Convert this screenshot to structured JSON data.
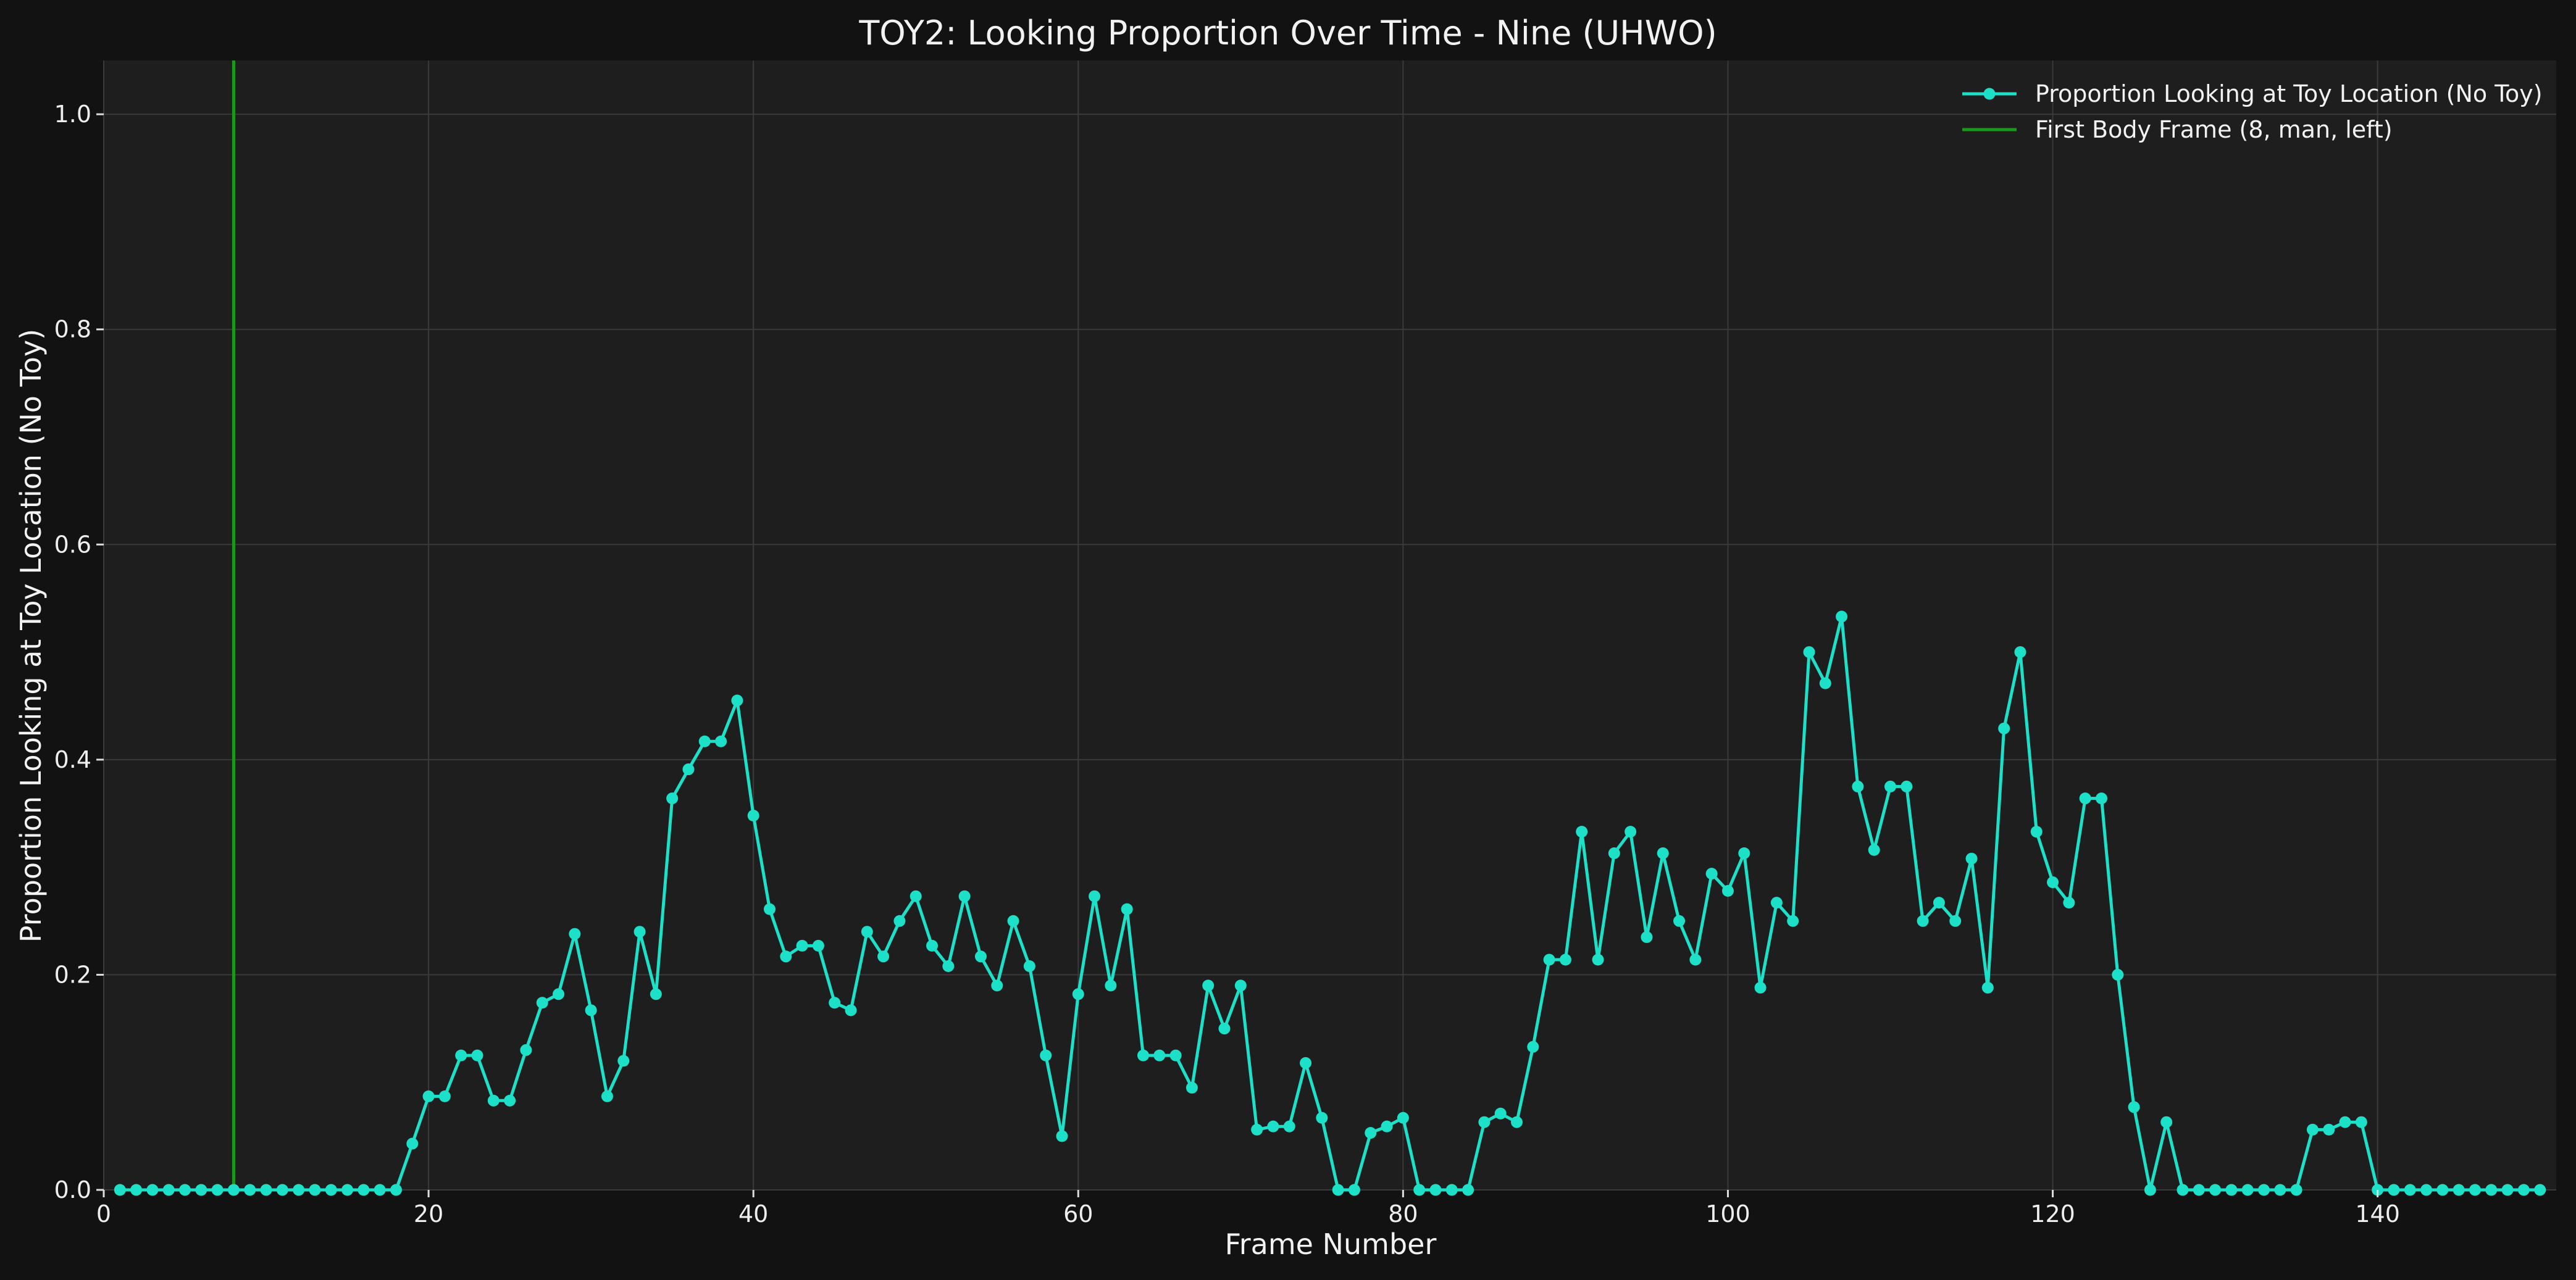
{
  "chart_data": {
    "type": "line",
    "title": "TOY2: Looking Proportion Over Time - Nine (UHWO)",
    "xlabel": "Frame Number",
    "ylabel": "Proportion Looking at Toy Location (No Toy)",
    "xlim": [
      0,
      151
    ],
    "ylim": [
      0,
      1.05
    ],
    "xticks": [
      0,
      20,
      40,
      60,
      80,
      100,
      120,
      140
    ],
    "yticks": [
      0.0,
      0.2,
      0.4,
      0.6,
      0.8,
      1.0
    ],
    "grid": true,
    "legend_position": "top-right",
    "series": [
      {
        "name": "Proportion Looking at Toy Location (No Toy)",
        "color": "#1de0c8",
        "marker": "circle",
        "x": [
          1,
          2,
          3,
          4,
          5,
          6,
          7,
          8,
          9,
          10,
          11,
          12,
          13,
          14,
          15,
          16,
          17,
          18,
          19,
          20,
          21,
          22,
          23,
          24,
          25,
          26,
          27,
          28,
          29,
          30,
          31,
          32,
          33,
          34,
          35,
          36,
          37,
          38,
          39,
          40,
          41,
          42,
          43,
          44,
          45,
          46,
          47,
          48,
          49,
          50,
          51,
          52,
          53,
          54,
          55,
          56,
          57,
          58,
          59,
          60,
          61,
          62,
          63,
          64,
          65,
          66,
          67,
          68,
          69,
          70,
          71,
          72,
          73,
          74,
          75,
          76,
          77,
          78,
          79,
          80,
          81,
          82,
          83,
          84,
          85,
          86,
          87,
          88,
          89,
          90,
          91,
          92,
          93,
          94,
          95,
          96,
          97,
          98,
          99,
          100,
          101,
          102,
          103,
          104,
          105,
          106,
          107,
          108,
          109,
          110,
          111,
          112,
          113,
          114,
          115,
          116,
          117,
          118,
          119,
          120,
          121,
          122,
          123,
          124,
          125,
          126,
          127,
          128,
          129,
          130,
          131,
          132,
          133,
          134,
          135,
          136,
          137,
          138,
          139,
          140,
          141,
          142,
          143,
          144,
          145,
          146,
          147,
          148,
          149,
          150
        ],
        "y": [
          0,
          0,
          0,
          0,
          0,
          0,
          0,
          0,
          0,
          0,
          0,
          0,
          0,
          0,
          0,
          0,
          0,
          0,
          0.043,
          0.087,
          0.087,
          0.125,
          0.125,
          0.083,
          0.083,
          0.13,
          0.174,
          0.182,
          0.238,
          0.167,
          0.087,
          0.12,
          0.24,
          0.182,
          0.364,
          0.391,
          0.417,
          0.417,
          0.455,
          0.348,
          0.261,
          0.217,
          0.227,
          0.227,
          0.174,
          0.167,
          0.24,
          0.217,
          0.25,
          0.273,
          0.227,
          0.208,
          0.273,
          0.217,
          0.19,
          0.25,
          0.208,
          0.125,
          0.05,
          0.182,
          0.273,
          0.19,
          0.261,
          0.125,
          0.125,
          0.125,
          0.095,
          0.19,
          0.15,
          0.19,
          0.056,
          0.059,
          0.059,
          0.118,
          0.067,
          0,
          0,
          0.053,
          0.059,
          0.067,
          0,
          0,
          0,
          0,
          0.063,
          0.071,
          0.063,
          0.133,
          0.214,
          0.214,
          0.333,
          0.214,
          0.313,
          0.333,
          0.235,
          0.313,
          0.25,
          0.214,
          0.294,
          0.278,
          0.313,
          0.188,
          0.267,
          0.25,
          0.5,
          0.471,
          0.533,
          0.375,
          0.316,
          0.375,
          0.375,
          0.25,
          0.267,
          0.25,
          0.308,
          0.188,
          0.429,
          0.5,
          0.333,
          0.286,
          0.267,
          0.364,
          0.364,
          0.2,
          0.077,
          0,
          0.063,
          0,
          0,
          0,
          0,
          0,
          0,
          0,
          0,
          0.056,
          0.056,
          0.063,
          0.063,
          0,
          0,
          0,
          0,
          0,
          0,
          0,
          0,
          0,
          0,
          0
        ]
      },
      {
        "name": "First Body Frame (8, man, left)",
        "color": "#1a9a1a",
        "type": "vline",
        "x": 8
      }
    ]
  }
}
